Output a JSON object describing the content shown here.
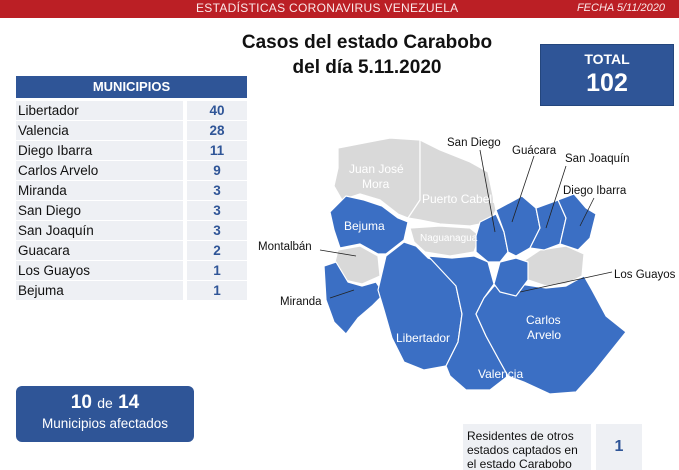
{
  "header": {
    "title": "ESTADÍSTICAS CORONAVIRUS VENEZUELA",
    "date": "FECHA 5/11/2020"
  },
  "title": {
    "line1": "Casos del estado Carabobo",
    "line2": "del día 5.11.2020"
  },
  "total": {
    "label": "TOTAL",
    "value": "102"
  },
  "table": {
    "header": "MUNICIPIOS",
    "rows": [
      {
        "name": "Libertador",
        "count": "40"
      },
      {
        "name": "Valencia",
        "count": "28"
      },
      {
        "name": "Diego Ibarra",
        "count": "11"
      },
      {
        "name": "Carlos Arvelo",
        "count": "9"
      },
      {
        "name": "Miranda",
        "count": "3"
      },
      {
        "name": "San Diego",
        "count": "3"
      },
      {
        "name": "San Joaquín",
        "count": "3"
      },
      {
        "name": "Guacara",
        "count": "2"
      },
      {
        "name": "Los Guayos",
        "count": "1"
      },
      {
        "name": "Bejuma",
        "count": "1"
      }
    ]
  },
  "affected": {
    "count": "10",
    "of": "de",
    "total": "14",
    "label": "Municipios afectados"
  },
  "residents": {
    "label": "Residentes de otros estados captados en el estado Carabobo",
    "value": "1"
  },
  "colors": {
    "header_red": "#bb1f25",
    "affected_blue": "#2f5597",
    "unaffected_gray": "#d9d9d9"
  },
  "map": {
    "labels": {
      "juan_jose_mora_1": "Juan José",
      "juan_jose_mora_2": "Mora",
      "puerto_cabello": "Puerto Cabello",
      "naguanagua": "Naguanagua",
      "bejuma": "Bejuma",
      "montalban": "Montalbán",
      "miranda": "Miranda",
      "libertador": "Libertador",
      "valencia": "Valencia",
      "carlos_arvelo_1": "Carlos",
      "carlos_arvelo_2": "Arvelo",
      "san_diego": "San Diego",
      "guacara": "Guácara",
      "san_joaquin": "San Joaquín",
      "diego_ibarra": "Diego Ibarra",
      "los_guayos": "Los Guayos"
    }
  }
}
